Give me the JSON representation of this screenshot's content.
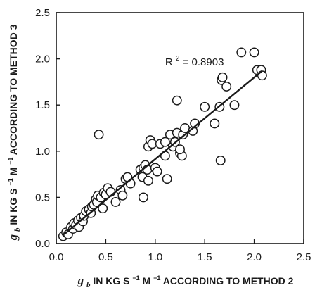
{
  "chart_data": {
    "type": "scatter",
    "title": "",
    "xlabel": {
      "symbol": "g",
      "subscript": "b",
      "text_parts": [
        " IN KG S",
        "−1",
        " M",
        "−1",
        " ACCORDING TO METHOD 2"
      ]
    },
    "ylabel": {
      "symbol": "g",
      "subscript": "b",
      "text_parts": [
        " IN KG S",
        "−1",
        " M",
        "−1",
        " ACCORDING TO METHOD 3"
      ]
    },
    "xlim": [
      0,
      2.5
    ],
    "ylim": [
      0,
      2.5
    ],
    "xticks": [
      "0.0",
      "0.5",
      "1.0",
      "1.5",
      "2.0",
      "2.5"
    ],
    "yticks": [
      "0.0",
      "0.5",
      "1.0",
      "1.5",
      "2.0",
      "2.5"
    ],
    "grid": false,
    "legend": "none",
    "annotation": {
      "prefix": "R",
      "sup": "2",
      "suffix": " = 0.8903",
      "x": 1.1,
      "y": 1.93
    },
    "fit_line": {
      "x": [
        0.08,
        2.08
      ],
      "y": [
        0.1,
        1.87
      ]
    },
    "marker": "open-circle",
    "x": [
      0.07,
      0.1,
      0.12,
      0.15,
      0.17,
      0.18,
      0.2,
      0.22,
      0.23,
      0.25,
      0.27,
      0.28,
      0.3,
      0.33,
      0.35,
      0.36,
      0.38,
      0.4,
      0.41,
      0.42,
      0.45,
      0.47,
      0.48,
      0.5,
      0.52,
      0.55,
      0.6,
      0.65,
      0.67,
      0.7,
      0.75,
      0.85,
      0.87,
      0.88,
      0.9,
      0.92,
      0.93,
      0.95,
      0.97,
      1.0,
      1.02,
      1.05,
      1.1,
      1.12,
      1.15,
      1.18,
      1.2,
      1.22,
      1.25,
      1.27,
      1.28,
      1.3,
      1.38,
      1.4,
      1.5,
      1.6,
      1.65,
      1.66,
      1.67,
      1.68,
      1.72,
      1.8,
      1.87,
      2.0,
      2.03,
      2.07,
      2.08,
      0.43,
      1.22,
      0.93,
      1.1,
      1.25,
      0.47,
      0.88,
      0.72
    ],
    "y": [
      0.08,
      0.12,
      0.1,
      0.18,
      0.16,
      0.22,
      0.2,
      0.25,
      0.18,
      0.28,
      0.24,
      0.3,
      0.35,
      0.37,
      0.33,
      0.4,
      0.42,
      0.48,
      0.45,
      0.52,
      0.5,
      0.38,
      0.55,
      0.53,
      0.6,
      0.56,
      0.45,
      0.58,
      0.52,
      0.7,
      0.65,
      0.8,
      0.72,
      0.82,
      0.85,
      0.8,
      1.05,
      1.12,
      1.08,
      0.82,
      0.78,
      1.08,
      0.95,
      0.7,
      1.18,
      1.05,
      1.1,
      1.2,
      0.98,
      0.95,
      1.18,
      1.25,
      1.22,
      1.3,
      1.48,
      1.3,
      1.48,
      0.9,
      1.77,
      1.8,
      1.7,
      1.5,
      2.07,
      2.07,
      1.88,
      1.88,
      1.82,
      1.18,
      1.55,
      0.68,
      1.1,
      1.02,
      0.38,
      0.5,
      0.72
    ]
  }
}
